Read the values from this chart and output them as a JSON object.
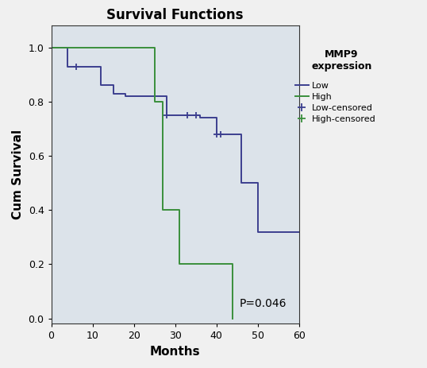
{
  "title": "Survival Functions",
  "xlabel": "Months",
  "ylabel": "Cum Survival",
  "legend_title": "MMP9\nexpression",
  "pvalue_text": "P=0.046",
  "xlim": [
    0,
    60
  ],
  "ylim": [
    -0.02,
    1.08
  ],
  "xticks": [
    0,
    10,
    20,
    30,
    40,
    50,
    60
  ],
  "yticks": [
    0.0,
    0.2,
    0.4,
    0.6,
    0.8,
    1.0
  ],
  "low_color": "#3c3f8f",
  "high_color": "#3a8f3c",
  "bg_color": "#dce3ea",
  "outer_bg": "#f0f0f0",
  "low_km_times": [
    0,
    4,
    6,
    12,
    15,
    18,
    21,
    24,
    28,
    30,
    33,
    35,
    36,
    38,
    40,
    41,
    43,
    44,
    46,
    48,
    50,
    60
  ],
  "low_km_surv": [
    1.0,
    0.93,
    0.93,
    0.86,
    0.83,
    0.82,
    0.82,
    0.82,
    0.75,
    0.75,
    0.75,
    0.75,
    0.74,
    0.74,
    0.68,
    0.68,
    0.68,
    0.68,
    0.5,
    0.5,
    0.32,
    0.32
  ],
  "low_censor_times": [
    6,
    28,
    33,
    35,
    40,
    41
  ],
  "low_censor_surv": [
    0.93,
    0.75,
    0.75,
    0.75,
    0.68,
    0.68
  ],
  "high_km_times": [
    0,
    15,
    25,
    27,
    31,
    43,
    44
  ],
  "high_km_surv": [
    1.0,
    1.0,
    0.8,
    0.4,
    0.2,
    0.2,
    0.0
  ],
  "high_censor_times": [],
  "high_censor_surv": []
}
